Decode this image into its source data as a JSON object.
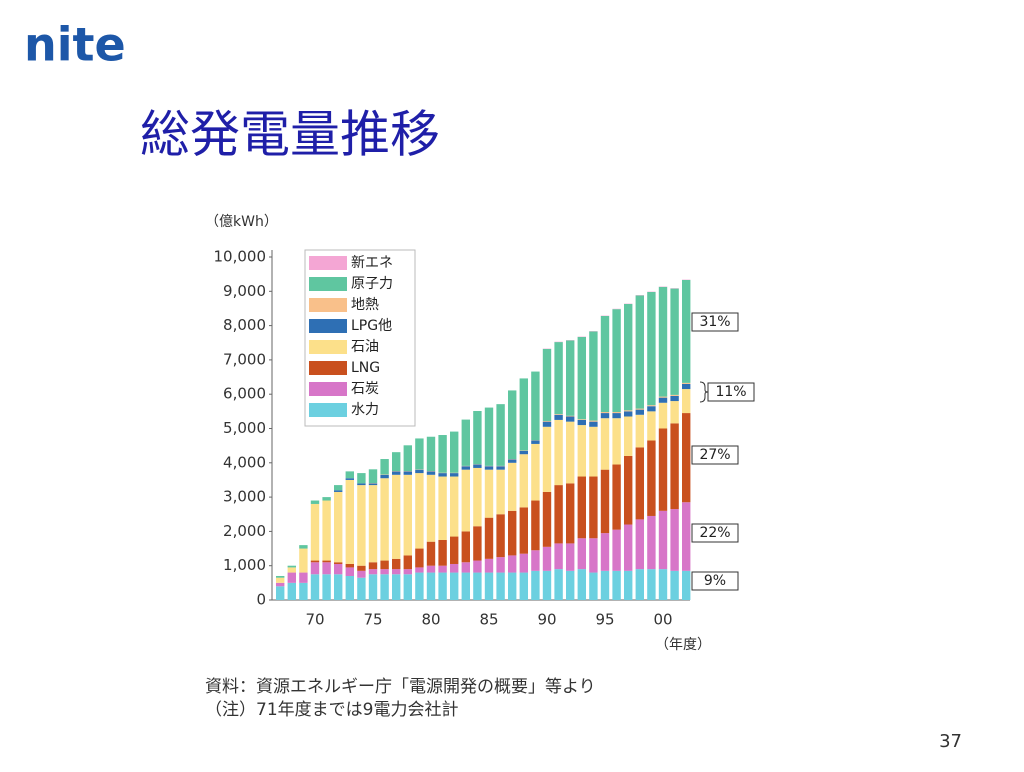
{
  "logo": "nite",
  "page_number": "37",
  "chart_data": {
    "type": "stacked-bar",
    "title": "総発電量推移",
    "y_label": "（億kWh）",
    "x_label": "（年度）",
    "source": "資料：資源エネルギー庁「電源開発の概要」等より",
    "note": "（注）71年度までは9電力会社計",
    "categories": [
      null,
      null,
      null,
      "70",
      null,
      null,
      null,
      null,
      "75",
      null,
      null,
      null,
      null,
      "80",
      null,
      null,
      null,
      null,
      "85",
      null,
      null,
      null,
      null,
      "90",
      null,
      null,
      null,
      null,
      "95",
      null,
      null,
      null,
      null,
      "00",
      null,
      null
    ],
    "ylim": [
      0,
      10000
    ],
    "yticks": [
      0,
      {
        "value": 1000,
        "label": "1,000"
      },
      {
        "value": 2000,
        "label": "2,000"
      },
      {
        "value": 3000,
        "label": "3,000"
      },
      {
        "value": 4000,
        "label": "4,000"
      },
      {
        "value": 5000,
        "label": "5,000"
      },
      {
        "value": 6000,
        "label": "6,000"
      },
      {
        "value": 7000,
        "label": "7,000"
      },
      {
        "value": 8000,
        "label": "8,000"
      },
      {
        "value": 9000,
        "label": "9,000"
      },
      {
        "value": 10000,
        "label": "10,000"
      }
    ],
    "series": [
      {
        "name": "水力",
        "color": "#6cd0e0",
        "values": [
          400,
          500,
          500,
          750,
          750,
          750,
          700,
          650,
          750,
          750,
          750,
          750,
          800,
          800,
          800,
          800,
          800,
          800,
          800,
          800,
          800,
          800,
          850,
          850,
          900,
          850,
          900,
          800,
          850,
          850,
          850,
          900,
          900,
          900,
          850,
          850
        ]
      },
      {
        "name": "石炭",
        "color": "#d776c8",
        "values": [
          100,
          300,
          300,
          350,
          350,
          300,
          250,
          200,
          150,
          150,
          150,
          150,
          150,
          200,
          200,
          250,
          300,
          350,
          400,
          450,
          500,
          550,
          600,
          700,
          750,
          800,
          900,
          1000,
          1100,
          1200,
          1350,
          1450,
          1550,
          1700,
          1800,
          2000
        ]
      },
      {
        "name": "LNG",
        "color": "#c9501e",
        "values": [
          0,
          0,
          0,
          50,
          50,
          50,
          100,
          150,
          200,
          250,
          300,
          400,
          550,
          700,
          750,
          800,
          900,
          1000,
          1200,
          1250,
          1300,
          1350,
          1450,
          1600,
          1700,
          1750,
          1800,
          1800,
          1850,
          1900,
          2000,
          2100,
          2200,
          2400,
          2500,
          2600
        ]
      },
      {
        "name": "石油",
        "color": "#fce08a",
        "values": [
          150,
          150,
          700,
          1650,
          1750,
          2050,
          2450,
          2350,
          2250,
          2400,
          2450,
          2350,
          2200,
          1950,
          1850,
          1750,
          1800,
          1700,
          1400,
          1300,
          1400,
          1550,
          1650,
          1900,
          1900,
          1800,
          1500,
          1450,
          1500,
          1350,
          1150,
          950,
          850,
          750,
          650,
          700
        ]
      },
      {
        "name": "LPG他",
        "color": "#2e6fb4",
        "values": [
          0,
          0,
          0,
          0,
          0,
          50,
          50,
          50,
          50,
          100,
          100,
          100,
          100,
          100,
          100,
          100,
          100,
          100,
          100,
          100,
          100,
          100,
          100,
          150,
          150,
          150,
          150,
          150,
          150,
          150,
          150,
          150,
          150,
          150,
          150,
          150
        ]
      },
      {
        "name": "地熱",
        "color": "#f9c08a",
        "values": [
          0,
          0,
          0,
          0,
          0,
          0,
          0,
          0,
          10,
          10,
          10,
          10,
          10,
          10,
          10,
          10,
          10,
          10,
          10,
          10,
          10,
          10,
          10,
          20,
          20,
          20,
          20,
          30,
          30,
          30,
          30,
          30,
          30,
          30,
          30,
          30
        ]
      },
      {
        "name": "原子力",
        "color": "#5fc6a0",
        "values": [
          50,
          50,
          100,
          100,
          100,
          150,
          200,
          300,
          400,
          450,
          550,
          750,
          900,
          1000,
          1100,
          1200,
          1350,
          1550,
          1700,
          1800,
          2000,
          2100,
          2000,
          2100,
          2100,
          2200,
          2400,
          2600,
          2800,
          3000,
          3100,
          3300,
          3300,
          3200,
          3100,
          3000
        ]
      },
      {
        "name": "新エネ",
        "color": "#f4a6d4",
        "values": [
          0,
          0,
          0,
          0,
          0,
          0,
          0,
          0,
          0,
          0,
          0,
          0,
          0,
          0,
          0,
          0,
          0,
          0,
          0,
          0,
          0,
          0,
          0,
          10,
          10,
          10,
          10,
          10,
          10,
          10,
          10,
          10,
          10,
          10,
          10,
          10
        ]
      }
    ],
    "annotations": [
      "31%",
      "11%",
      "27%",
      "22%",
      "9%"
    ]
  }
}
